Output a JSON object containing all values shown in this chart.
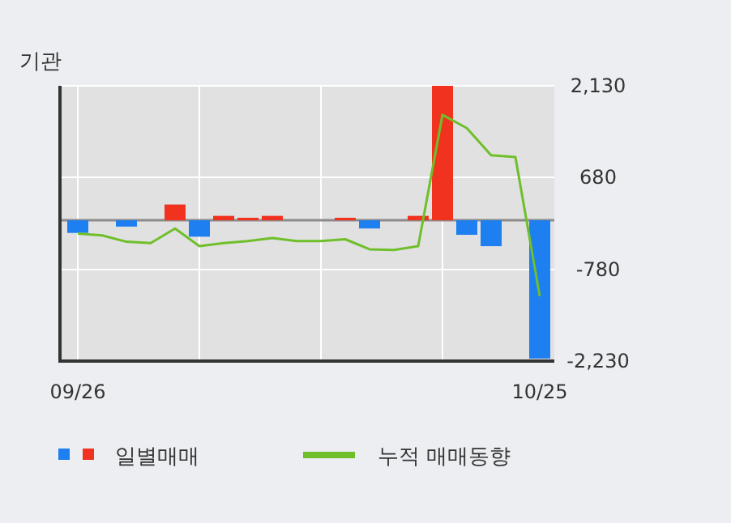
{
  "chart_data": {
    "type": "bar",
    "title": "기관",
    "categories": [
      "09/26",
      null,
      null,
      null,
      null,
      null,
      null,
      null,
      null,
      null,
      null,
      null,
      null,
      null,
      null,
      null,
      null,
      null,
      null,
      "10/25"
    ],
    "series": [
      {
        "name": "일별매매",
        "colors": [
          "#1e7ff0",
          "#1e7ff0",
          "#1e7ff0",
          "#f0321e",
          "#f0321e",
          "#1e7ff0",
          "#f0321e",
          "#f0321e",
          "#f0321e",
          "#f0321e",
          "#f0321e",
          "#f0321e",
          "#1e7ff0",
          "#f0321e",
          "#f0321e",
          "#f0321e",
          "#1e7ff0",
          "#1e7ff0",
          "#f0321e",
          "#1e7ff0"
        ],
        "values": [
          -200,
          0,
          -100,
          0,
          250,
          -260,
          70,
          40,
          70,
          0,
          0,
          40,
          -130,
          0,
          70,
          2130,
          -230,
          -410,
          0,
          -2190
        ]
      },
      {
        "name": "누적 매매동향",
        "type": "line",
        "color": "#6fbf2a",
        "values": [
          -210,
          -240,
          -340,
          -360,
          -130,
          -410,
          -360,
          -330,
          -280,
          -330,
          -330,
          -300,
          -460,
          -470,
          -410,
          1670,
          1460,
          1030,
          1000,
          -1200
        ]
      }
    ],
    "ylim": [
      -2230,
      2130
    ],
    "yticks": [
      {
        "value": 2130,
        "label": "2,130"
      },
      {
        "value": 680,
        "label": "680"
      },
      {
        "value": -780,
        "label": "-780"
      },
      {
        "value": -2230,
        "label": "-2,230"
      }
    ],
    "grid": true,
    "legend": "bottom"
  }
}
